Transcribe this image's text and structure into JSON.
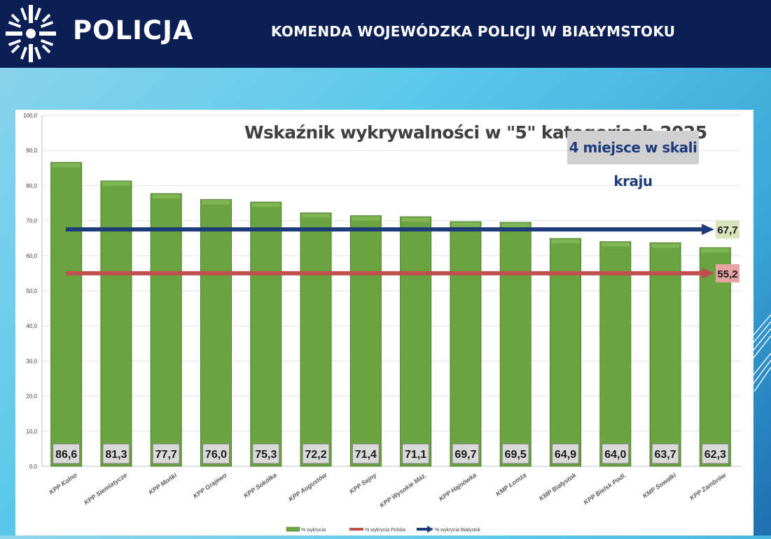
{
  "header": {
    "logo_text": "POLICJA",
    "title": "KOMENDA WOJEWÓDZKA POLICJI W BIAŁYMSTOKU"
  },
  "colors": {
    "header_bg": "#0b1f55",
    "bar_green": "#6aa441",
    "line_bialystok": "#1f3c7a",
    "line_polska": "#c0504d"
  },
  "chart_data": {
    "type": "bar",
    "title": "Wskaźnik wykrywalności w \"5\" kategoriach 2025",
    "annotation": "4 miejsce w skali kraju",
    "categories": [
      "KPP Kolno",
      "KPP Siemiatycze",
      "KPP Mońki",
      "KPP Grajewo",
      "KPP Sokółka",
      "KPP Augustów",
      "KPP Sejny",
      "KPP Wysokie Maz.",
      "KPP Hajnówka",
      "KMP Łomża",
      "KMP Białystok",
      "KPP Bielsk Podl.",
      "KMP Suwałki",
      "KPP Zambrów"
    ],
    "series": [
      {
        "name": "% wykrycia",
        "values": [
          86.6,
          81.3,
          77.7,
          76.0,
          75.3,
          72.2,
          71.4,
          71.1,
          69.7,
          69.5,
          64.9,
          64.0,
          63.7,
          62.3
        ]
      },
      {
        "name": "% wykrycia Polska",
        "value": 55.2
      },
      {
        "name": "% wykrycia Białystok",
        "value": 67.7
      }
    ],
    "data_labels": [
      "86,6",
      "81,3",
      "77,7",
      "76,0",
      "75,3",
      "72,2",
      "71,4",
      "71,1",
      "69,7",
      "69,5",
      "64,9",
      "64,0",
      "63,7",
      "62,3"
    ],
    "reference_labels": {
      "bialystok": "67,7",
      "polska": "55,2"
    },
    "y_ticks": [
      "0,0",
      "10,0",
      "20,0",
      "30,0",
      "40,0",
      "50,0",
      "60,0",
      "70,0",
      "80,0",
      "90,0",
      "100,0"
    ],
    "ylim": [
      0,
      100
    ],
    "grid": true,
    "legend_position": "bottom"
  }
}
